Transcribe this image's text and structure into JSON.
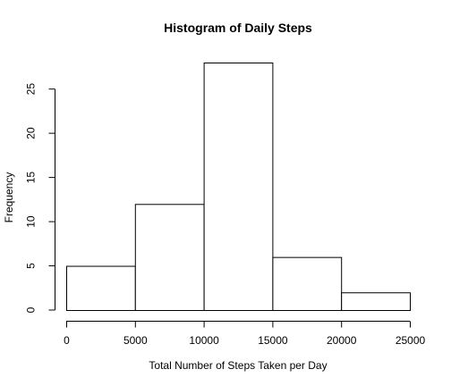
{
  "chart_data": {
    "type": "bar",
    "title": "Histogram of Daily Steps",
    "xlabel": "Total Number of Steps Taken per Day",
    "ylabel": "Frequency",
    "bins": [
      {
        "from": 0,
        "to": 5000,
        "count": 5
      },
      {
        "from": 5000,
        "to": 10000,
        "count": 12
      },
      {
        "from": 10000,
        "to": 15000,
        "count": 28
      },
      {
        "from": 15000,
        "to": 20000,
        "count": 6
      },
      {
        "from": 20000,
        "to": 25000,
        "count": 2
      }
    ],
    "xlim": [
      0,
      25000
    ],
    "ylim": [
      0,
      28
    ],
    "x_ticks": [
      "0",
      "5000",
      "10000",
      "15000",
      "20000",
      "25000"
    ],
    "y_ticks": [
      "0",
      "5",
      "10",
      "15",
      "20",
      "25"
    ],
    "grid": false,
    "bar_fill": "#ffffff",
    "bar_stroke": "#000000"
  }
}
